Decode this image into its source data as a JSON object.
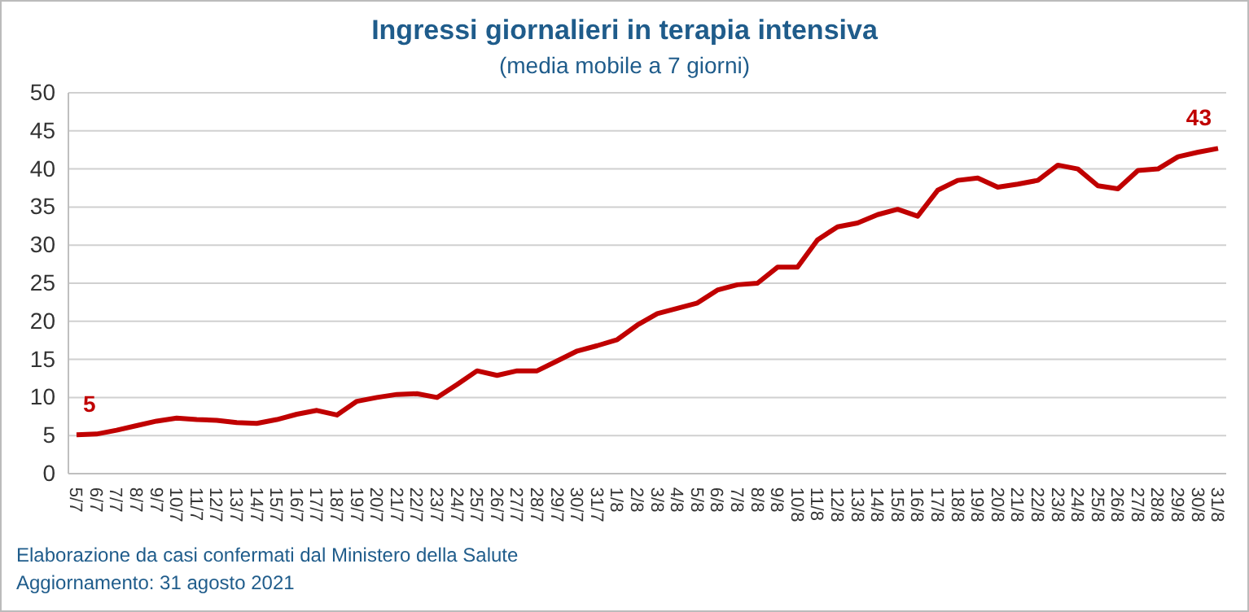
{
  "chart_data": {
    "type": "line",
    "title": "Ingressi giornalieri in terapia intensiva",
    "subtitle": "(media mobile a 7 giorni)",
    "categories": [
      "5/7",
      "6/7",
      "7/7",
      "8/7",
      "9/7",
      "10/7",
      "11/7",
      "12/7",
      "13/7",
      "14/7",
      "15/7",
      "16/7",
      "17/7",
      "18/7",
      "19/7",
      "20/7",
      "21/7",
      "22/7",
      "23/7",
      "24/7",
      "25/7",
      "26/7",
      "27/7",
      "28/7",
      "29/7",
      "30/7",
      "31/7",
      "1/8",
      "2/8",
      "3/8",
      "4/8",
      "5/8",
      "6/8",
      "7/8",
      "8/8",
      "9/8",
      "10/8",
      "11/8",
      "12/8",
      "13/8",
      "14/8",
      "15/8",
      "16/8",
      "17/8",
      "18/8",
      "19/8",
      "20/8",
      "21/8",
      "22/8",
      "23/8",
      "24/8",
      "25/8",
      "26/8",
      "27/8",
      "28/8",
      "29/8",
      "30/8",
      "31/8"
    ],
    "series": [
      {
        "color": "#c00000",
        "values": [
          5.1,
          5.2,
          5.7,
          6.3,
          6.9,
          7.3,
          7.1,
          7.0,
          6.7,
          6.6,
          7.1,
          7.8,
          8.3,
          7.7,
          9.5,
          10.0,
          10.4,
          10.5,
          10.0,
          11.7,
          13.5,
          12.9,
          13.5,
          13.5,
          14.8,
          16.1,
          16.8,
          17.6,
          19.5,
          21.0,
          21.7,
          22.4,
          24.1,
          24.8,
          25.0,
          27.1,
          27.1,
          30.7,
          32.4,
          32.9,
          34.0,
          34.7,
          33.8,
          37.2,
          38.5,
          38.8,
          37.6,
          38.0,
          38.5,
          40.5,
          40.0,
          37.8,
          37.4,
          39.8,
          40.0,
          41.6,
          42.2,
          42.7
        ]
      }
    ],
    "ylim": [
      0,
      50
    ],
    "yticks": [
      0,
      5,
      10,
      15,
      20,
      25,
      30,
      35,
      40,
      45,
      50
    ],
    "grid": "y",
    "line_style": "solid",
    "marker": "none",
    "annotations": [
      {
        "text": "5",
        "x": "5/7",
        "y": 5.1
      },
      {
        "text": "43",
        "x": "31/8",
        "y": 42.7
      },
      "Elaborazione da casi confermati dal Ministero della Salute",
      "Aggiornamento: 31 agosto 2021"
    ]
  }
}
